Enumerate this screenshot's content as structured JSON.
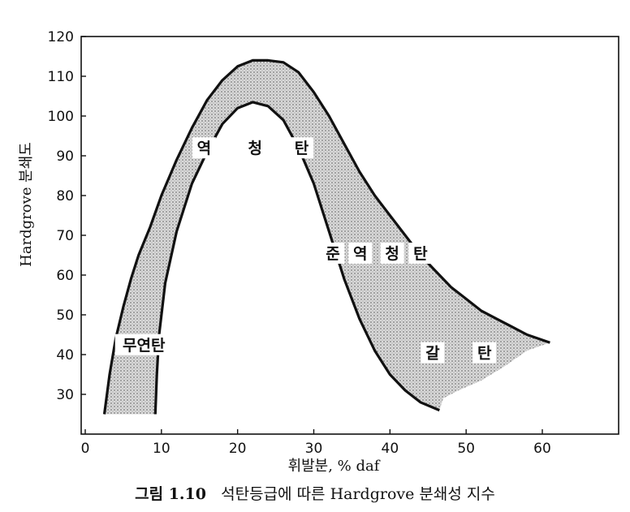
{
  "chart_data": {
    "type": "area",
    "x": {
      "label": "휘발분, % daf",
      "range": [
        0,
        70
      ],
      "ticks": [
        0,
        10,
        20,
        30,
        40,
        50,
        60
      ]
    },
    "y": {
      "label": "Hardgrove 분쇄도",
      "range": [
        20,
        120
      ],
      "ticks": [
        30,
        40,
        50,
        60,
        70,
        80,
        90,
        100,
        110,
        120
      ]
    },
    "grid": false,
    "bands": [
      {
        "outer_boundary": [
          [
            2.5,
            25
          ],
          [
            3.2,
            35
          ],
          [
            4,
            44
          ],
          [
            5,
            52
          ],
          [
            6,
            59
          ],
          [
            7,
            65
          ],
          [
            8.5,
            72
          ],
          [
            10,
            80
          ],
          [
            12,
            89
          ],
          [
            14,
            97
          ],
          [
            16,
            104
          ],
          [
            18,
            109
          ],
          [
            20,
            112.5
          ],
          [
            22,
            114
          ],
          [
            24,
            114
          ],
          [
            26,
            113.5
          ],
          [
            28,
            111
          ],
          [
            30,
            106
          ],
          [
            32,
            100
          ],
          [
            34,
            93
          ],
          [
            36,
            86
          ],
          [
            38,
            80
          ],
          [
            40,
            75
          ],
          [
            42,
            70
          ],
          [
            44,
            65
          ],
          [
            46,
            61
          ],
          [
            48,
            57
          ],
          [
            50,
            54
          ],
          [
            52,
            51
          ],
          [
            54,
            49
          ],
          [
            56,
            47
          ],
          [
            58,
            45
          ],
          [
            61,
            43
          ]
        ],
        "inner_boundary": [
          [
            46.5,
            26
          ],
          [
            44,
            28
          ],
          [
            42,
            31
          ],
          [
            40,
            35
          ],
          [
            38,
            41
          ],
          [
            36,
            49
          ],
          [
            34,
            59
          ],
          [
            32,
            71
          ],
          [
            30,
            83
          ],
          [
            28,
            92
          ],
          [
            26,
            99
          ],
          [
            24,
            102.5
          ],
          [
            22,
            103.5
          ],
          [
            20,
            102
          ],
          [
            18,
            98
          ],
          [
            16,
            91
          ],
          [
            14,
            83
          ],
          [
            12,
            71
          ],
          [
            10.5,
            58
          ],
          [
            9.7,
            45
          ],
          [
            9.4,
            35
          ],
          [
            9.2,
            25
          ]
        ],
        "lower_edge": [
          [
            61,
            43
          ],
          [
            58,
            41
          ],
          [
            55,
            37
          ],
          [
            52,
            33.5
          ],
          [
            49,
            31
          ],
          [
            47,
            29
          ],
          [
            46.5,
            26
          ]
        ]
      }
    ],
    "regions": [
      {
        "name": "무연탄",
        "x": 7.7,
        "y": 42.5
      },
      {
        "name": "역",
        "x": 15.6,
        "y": 92
      },
      {
        "name": "청",
        "x": 22.3,
        "y": 92
      },
      {
        "name": "탄",
        "x": 28.4,
        "y": 92
      },
      {
        "name": "준",
        "x": 32.5,
        "y": 65.5
      },
      {
        "name": "역",
        "x": 36.1,
        "y": 65.5
      },
      {
        "name": "청",
        "x": 40.3,
        "y": 65.5
      },
      {
        "name": "탄",
        "x": 44.0,
        "y": 65.5
      },
      {
        "name": "갈",
        "x": 45.6,
        "y": 40.5
      },
      {
        "name": "탄",
        "x": 52.4,
        "y": 40.5
      }
    ],
    "caption": {
      "figure_no": "그림 1.10",
      "text": "석탄등급에 따른 Hardgrove 분쇄성 지수"
    }
  }
}
